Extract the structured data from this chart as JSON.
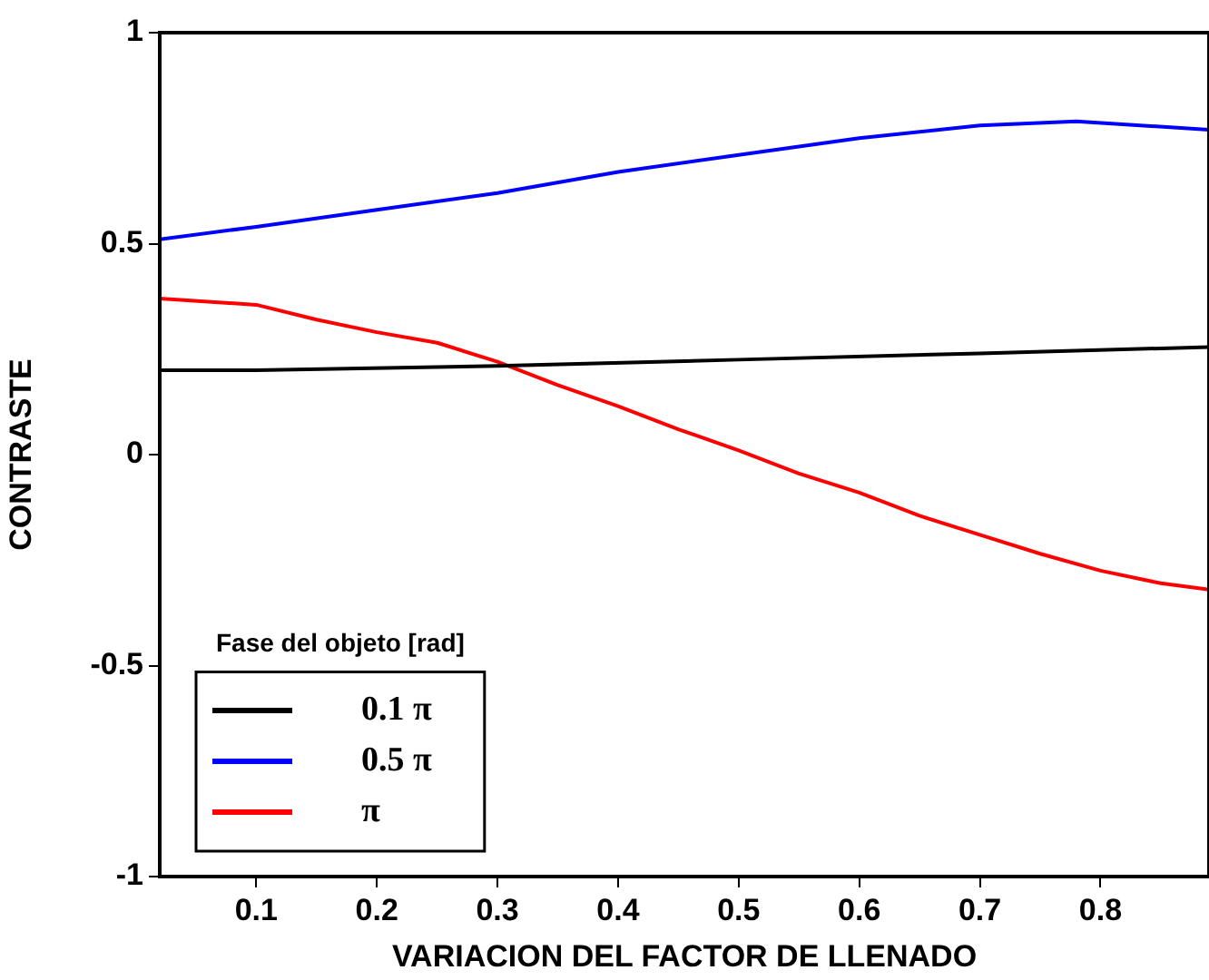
{
  "chart_data": {
    "type": "line",
    "xlabel": "VARIACION DEL FACTOR DE LLENADO",
    "ylabel": "CONTRASTE",
    "legend_title": "Fase del objeto [rad]",
    "legend": "bottom left",
    "grid": false,
    "marker": "none",
    "line_style": "solid",
    "xlim": [
      0.02,
      0.89
    ],
    "xticks": [
      0.1,
      0.2,
      0.3,
      0.4,
      0.5,
      0.6,
      0.7,
      0.8
    ],
    "ylim": [
      -1,
      1
    ],
    "yticks": [
      -1,
      -0.5,
      0,
      0.5,
      1
    ],
    "series": [
      {
        "name": "0.1 π",
        "color": "#000000",
        "x": [
          0.02,
          0.1,
          0.3,
          0.5,
          0.7,
          0.89
        ],
        "values": [
          0.2,
          0.2,
          0.21,
          0.225,
          0.24,
          0.255
        ]
      },
      {
        "name": "0.5 π",
        "color": "#0000ff",
        "x": [
          0.02,
          0.1,
          0.2,
          0.3,
          0.4,
          0.5,
          0.6,
          0.7,
          0.78,
          0.89
        ],
        "values": [
          0.51,
          0.54,
          0.58,
          0.62,
          0.67,
          0.71,
          0.75,
          0.78,
          0.79,
          0.77
        ]
      },
      {
        "name": "π",
        "color": "#ff0000",
        "x": [
          0.02,
          0.1,
          0.15,
          0.2,
          0.25,
          0.3,
          0.35,
          0.4,
          0.45,
          0.5,
          0.55,
          0.6,
          0.65,
          0.7,
          0.75,
          0.8,
          0.85,
          0.89
        ],
        "values": [
          0.37,
          0.355,
          0.32,
          0.29,
          0.265,
          0.22,
          0.165,
          0.115,
          0.06,
          0.01,
          -0.045,
          -0.09,
          -0.145,
          -0.19,
          -0.235,
          -0.275,
          -0.305,
          -0.32
        ]
      }
    ]
  }
}
